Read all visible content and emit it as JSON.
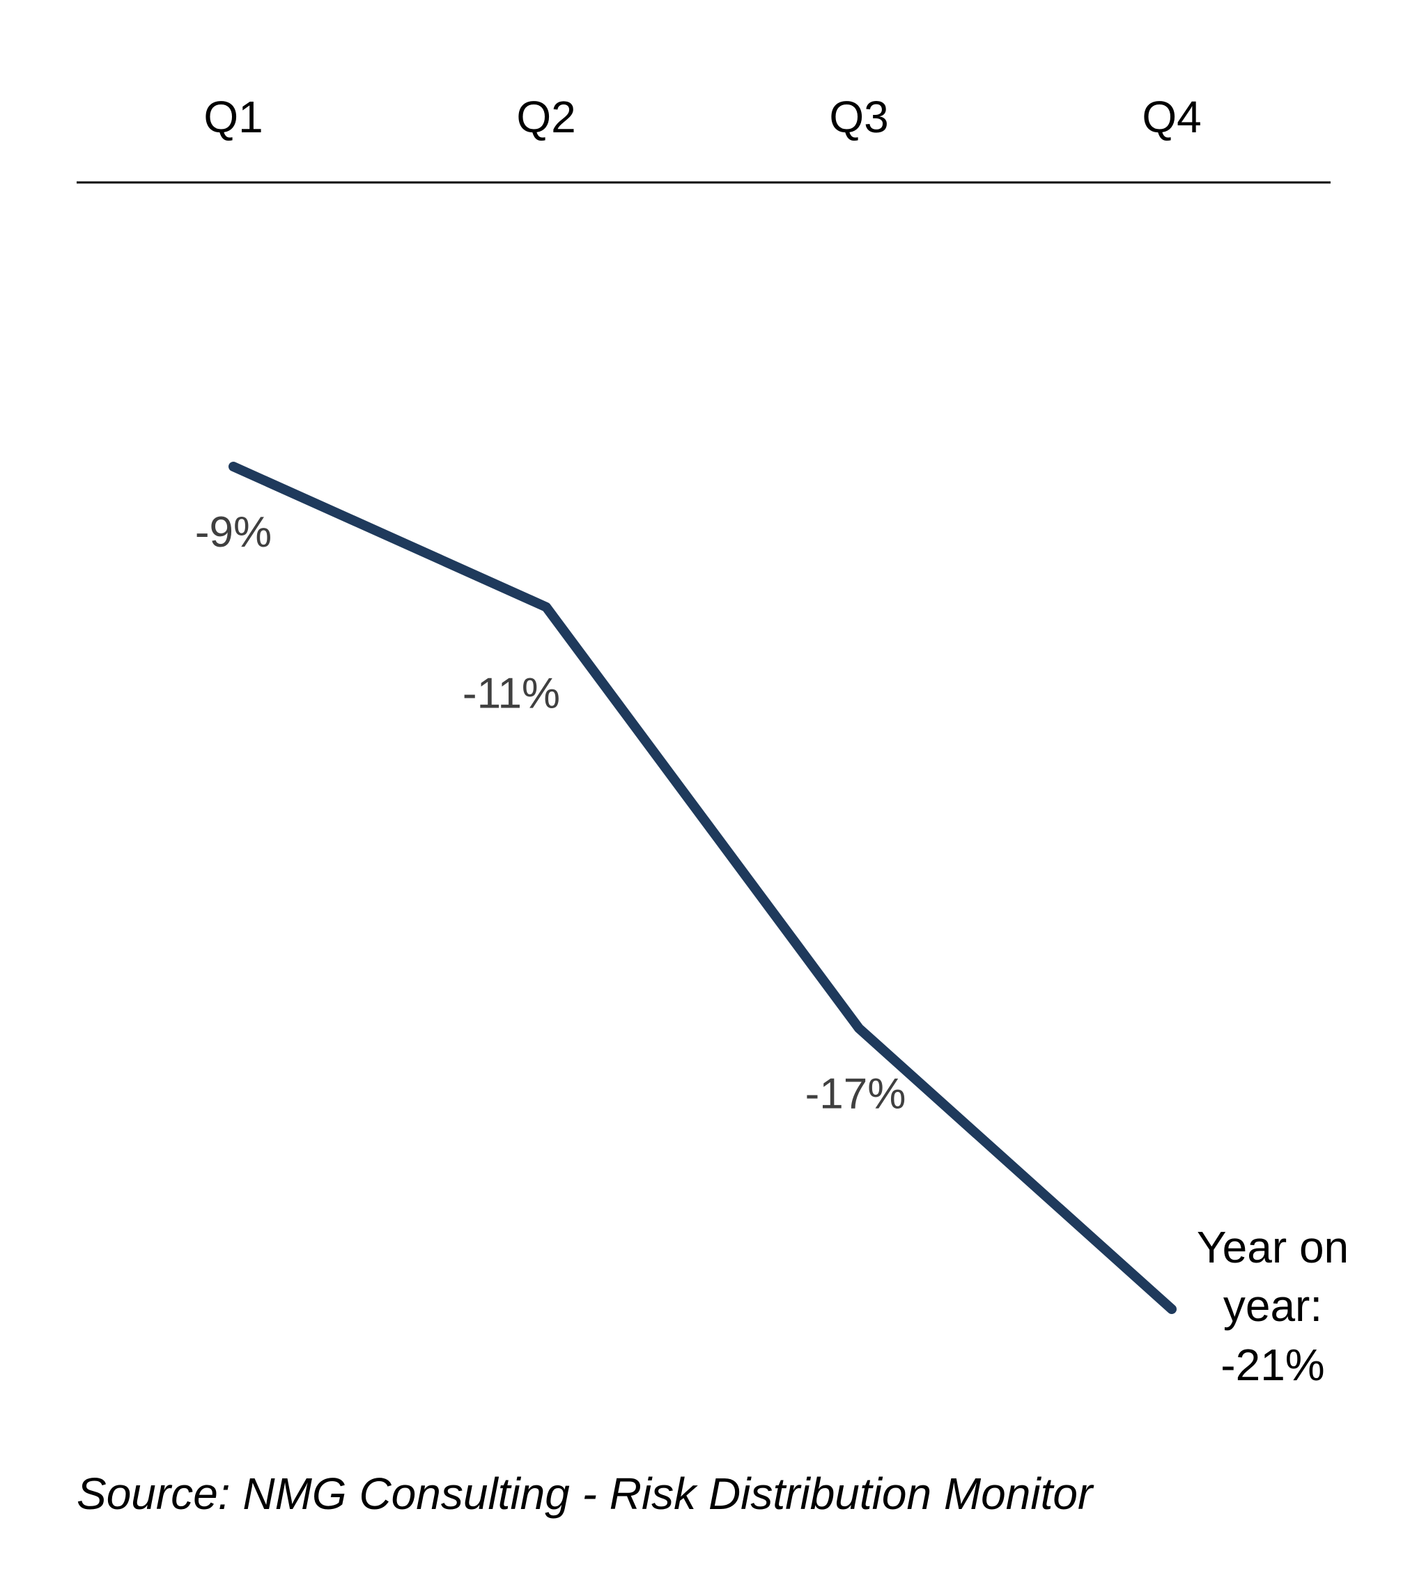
{
  "chart_data": {
    "type": "line",
    "categories": [
      "Q1",
      "Q2",
      "Q3",
      "Q4"
    ],
    "series": [
      {
        "values": [
          -9,
          -11,
          -17,
          -21
        ],
        "data_labels": [
          "-9%",
          "-11%",
          "-17%",
          null
        ],
        "color": "#1f3a5c"
      }
    ],
    "final_label": [
      "Year on",
      "year:",
      "-21%"
    ],
    "axis": "top",
    "grid": false,
    "legend": "none"
  },
  "source": "Source: NMG Consulting - Risk Distribution Monitor",
  "colors": {
    "line": "#1f3a5c",
    "axis": "#000000",
    "data_label": "#404040"
  }
}
